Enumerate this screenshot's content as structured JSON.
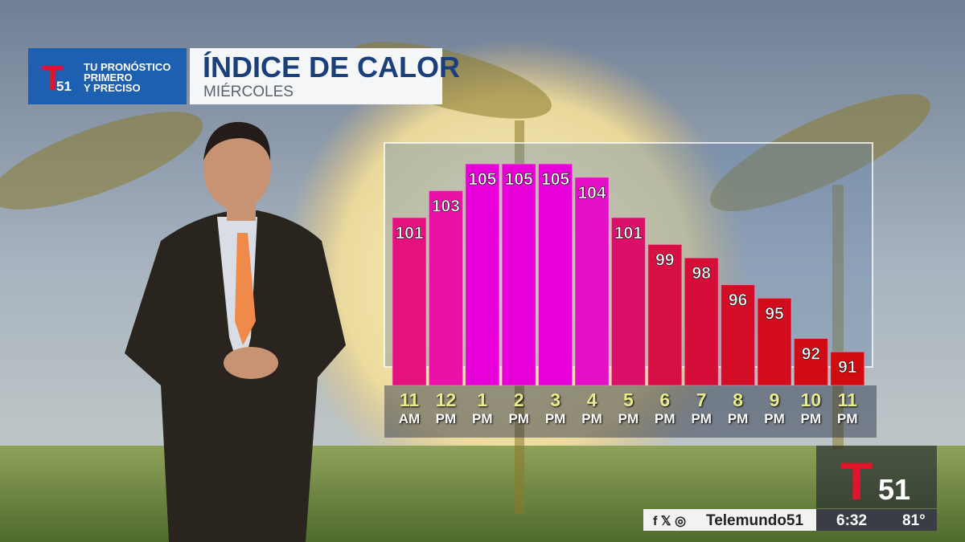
{
  "branding": {
    "tagline_1": "TU PRONÓSTICO",
    "tagline_2": "PRIMERO",
    "tagline_3": "Y PRECISO",
    "channel": "51",
    "handle": "Telemundo51",
    "time": "6:32",
    "temperature": "81°"
  },
  "chart_data": {
    "type": "bar",
    "title": "ÍNDICE DE CALOR",
    "subtitle": "MIÉRCOLES",
    "categories": [
      "11 AM",
      "12 PM",
      "1 PM",
      "2 PM",
      "3 PM",
      "4 PM",
      "5 PM",
      "6 PM",
      "7 PM",
      "8 PM",
      "9 PM",
      "10 PM",
      "11 PM"
    ],
    "values": [
      101,
      103,
      105,
      105,
      105,
      104,
      101,
      99,
      98,
      96,
      95,
      92,
      91
    ],
    "colors": [
      "#e3127e",
      "#ea10a8",
      "#e800d8",
      "#e800d8",
      "#e800d8",
      "#e310c8",
      "#d90f6a",
      "#d60f45",
      "#d40e38",
      "#d30d25",
      "#d20c1c",
      "#d10b14",
      "#d00c10"
    ],
    "ylim": [
      88.5,
      108
    ]
  }
}
